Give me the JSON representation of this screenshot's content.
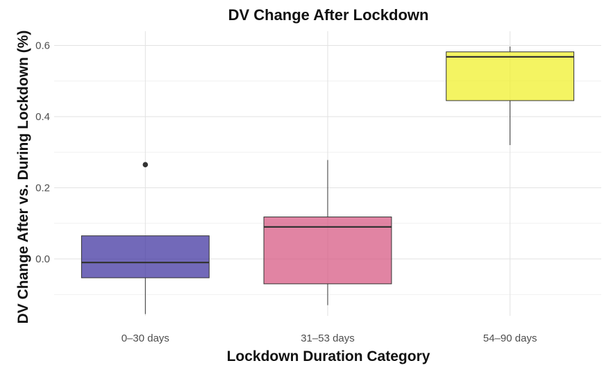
{
  "chart_data": {
    "type": "box",
    "title": "DV Change After Lockdown",
    "xlabel": "Lockdown Duration Category",
    "ylabel": "DV Change After vs. During Lockdown (%)",
    "ylim": [
      -0.16,
      0.64
    ],
    "y_ticks": [
      0.0,
      0.2,
      0.4,
      0.6
    ],
    "y_tick_labels": [
      "0.0",
      "0.2",
      "0.4",
      "0.6"
    ],
    "grid": true,
    "legend": "none",
    "categories": [
      "0–30 days",
      "31–53 days",
      "54–90 days"
    ],
    "boxes": [
      {
        "category": "0–30 days",
        "whisker_low": -0.155,
        "q1": -0.053,
        "median": -0.01,
        "q3": 0.065,
        "whisker_high": 0.065,
        "outliers": [
          0.265
        ],
        "color": "#3b2f9e"
      },
      {
        "category": "31–53 days",
        "whisker_low": -0.13,
        "q1": -0.07,
        "median": 0.09,
        "q3": 0.118,
        "whisker_high": 0.278,
        "outliers": [],
        "color": "#d6547f"
      },
      {
        "category": "54–90 days",
        "whisker_low": 0.32,
        "q1": 0.445,
        "median": 0.568,
        "q3": 0.582,
        "whisker_high": 0.597,
        "outliers": [],
        "color": "#f0f026"
      }
    ]
  }
}
